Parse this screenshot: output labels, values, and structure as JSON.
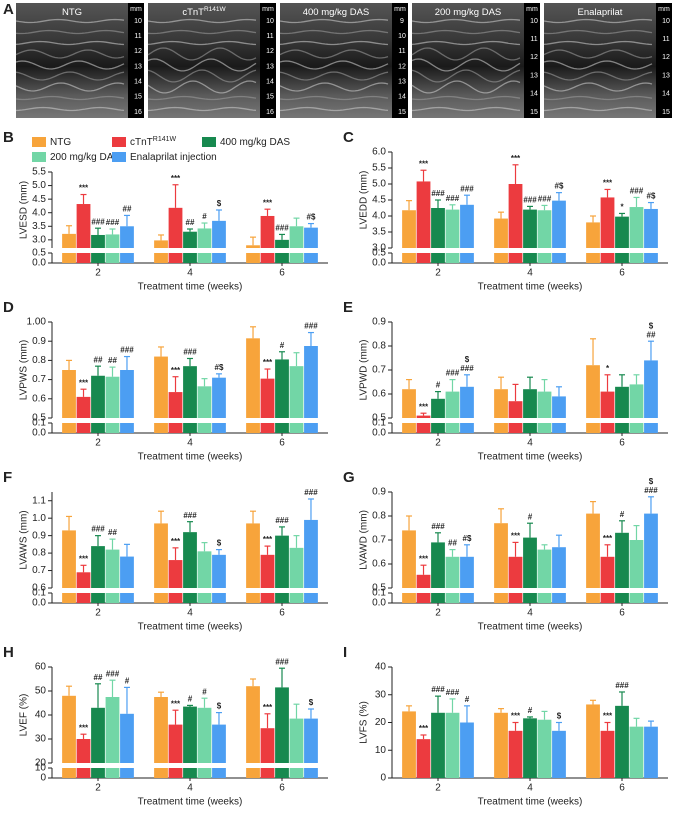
{
  "panel_a": {
    "label": "A",
    "images": [
      {
        "title": "NTG",
        "unit": "mm",
        "scale": [
          10,
          11,
          12,
          13,
          14,
          15,
          16
        ]
      },
      {
        "title": "cTnT",
        "title_sup": "R141W",
        "unit": "mm",
        "scale": [
          10,
          11,
          12,
          13,
          14,
          15,
          16
        ]
      },
      {
        "title": "400 mg/kg DAS",
        "unit": "mm",
        "scale": [
          9,
          10,
          11,
          12,
          13,
          14,
          15
        ]
      },
      {
        "title": "200 mg/kg DAS",
        "unit": "mm",
        "scale": [
          10,
          11,
          12,
          13,
          14,
          15
        ]
      },
      {
        "title": "Enalaprilat",
        "unit": "mm",
        "scale": [
          10,
          11,
          12,
          13,
          14,
          15
        ]
      }
    ]
  },
  "chart_data": [
    {
      "type": "bar",
      "panel": "B",
      "ylabel": "LVESD (mm)",
      "xlabel": "Treatment time (weeks)",
      "categories": [
        "2",
        "4",
        "6"
      ],
      "legend": true,
      "ylim": [
        2.7,
        5.5
      ],
      "yticks": [
        {
          "value": 3,
          "label": "3.0"
        },
        3.5,
        {
          "value": 4,
          "label": "4.0"
        },
        4.5,
        {
          "value": 5,
          "label": "5.0"
        },
        5.5
      ],
      "ylim_lower": [
        0,
        0.5
      ],
      "yticks_lower": [
        {
          "value": 0,
          "label": "0.0"
        },
        0.5
      ],
      "series": [
        {
          "name": "NTG",
          "color": "#f7a43b",
          "values": [
            3.22,
            2.98,
            2.8
          ],
          "errors": [
            0.3,
            0.2,
            0.3
          ]
        },
        {
          "name": "cTnT",
          "name_sup": "R141W",
          "color": "#ec3b3f",
          "values": [
            4.32,
            4.18,
            3.88
          ],
          "errors": [
            0.35,
            0.85,
            0.25
          ],
          "annotations": [
            "***",
            "***",
            "***"
          ]
        },
        {
          "name": "400 mg/kg DAS",
          "color": "#17894f",
          "values": [
            3.18,
            3.3,
            3.0
          ],
          "errors": [
            0.25,
            0.1,
            0.2
          ],
          "annotations": [
            "###",
            "##",
            "###"
          ]
        },
        {
          "name": "200 mg/kg DAS",
          "color": "#72d6a6",
          "values": [
            3.2,
            3.42,
            3.5
          ],
          "errors": [
            0.2,
            0.2,
            0.3
          ],
          "annotations": [
            "###",
            "#",
            null
          ]
        },
        {
          "name": "Enalaprilat injection",
          "color": "#4c9ef2",
          "values": [
            3.5,
            3.7,
            3.45
          ],
          "errors": [
            0.4,
            0.4,
            0.15
          ],
          "annotations": [
            "##",
            "$",
            "#$"
          ]
        }
      ]
    },
    {
      "type": "bar",
      "panel": "C",
      "ylabel": "LVEDD (mm)",
      "xlabel": "Treatment time (weeks)",
      "categories": [
        "2",
        "4",
        "6"
      ],
      "ylim": [
        3.0,
        6.0
      ],
      "yticks": [
        {
          "value": 3,
          "label": "3.0"
        },
        3.5,
        {
          "value": 4,
          "label": "4.0"
        },
        4.5,
        {
          "value": 5,
          "label": "5.0"
        },
        5.5,
        {
          "value": 6,
          "label": "6.0"
        }
      ],
      "ylim_lower": [
        0,
        0.5
      ],
      "yticks_lower": [
        {
          "value": 0,
          "label": "0.0"
        },
        0.5
      ],
      "series": [
        {
          "color": "#f7a43b",
          "values": [
            4.18,
            3.92,
            3.8
          ],
          "errors": [
            0.3,
            0.2,
            0.2
          ]
        },
        {
          "color": "#ec3b3f",
          "values": [
            5.08,
            5.0,
            4.58
          ],
          "errors": [
            0.35,
            0.6,
            0.25
          ],
          "annotations": [
            "***",
            "***",
            "***"
          ]
        },
        {
          "color": "#17894f",
          "values": [
            4.25,
            4.2,
            3.98
          ],
          "errors": [
            0.25,
            0.1,
            0.1
          ],
          "annotations": [
            "###",
            "###",
            "*"
          ]
        },
        {
          "color": "#72d6a6",
          "values": [
            4.2,
            4.18,
            4.28
          ],
          "errors": [
            0.15,
            0.15,
            0.3
          ],
          "annotations": [
            "###",
            "###",
            "###"
          ]
        },
        {
          "color": "#4c9ef2",
          "values": [
            4.35,
            4.48,
            4.22
          ],
          "errors": [
            0.3,
            0.25,
            0.2
          ],
          "annotations": [
            "###",
            "#$",
            "#$"
          ]
        }
      ]
    },
    {
      "type": "bar",
      "panel": "D",
      "ylabel": "LVPWS (mm)",
      "xlabel": "Treatment time (weeks)",
      "categories": [
        "2",
        "4",
        "6"
      ],
      "ylim": [
        0.5,
        1.0
      ],
      "yticks": [
        0.5,
        0.6,
        0.7,
        0.8,
        0.9,
        {
          "value": 1,
          "label": "1.00"
        }
      ],
      "ylim_lower": [
        0,
        0.1
      ],
      "yticks_lower": [
        {
          "value": 0,
          "label": "0.0"
        },
        0.1
      ],
      "series": [
        {
          "color": "#f7a43b",
          "values": [
            0.75,
            0.82,
            0.915
          ],
          "errors": [
            0.05,
            0.05,
            0.06
          ]
        },
        {
          "color": "#ec3b3f",
          "values": [
            0.61,
            0.635,
            0.705
          ],
          "errors": [
            0.04,
            0.08,
            0.05
          ],
          "annotations": [
            "***",
            "***",
            "***"
          ]
        },
        {
          "color": "#17894f",
          "values": [
            0.72,
            0.77,
            0.805
          ],
          "errors": [
            0.05,
            0.04,
            0.04
          ],
          "annotations": [
            "##",
            "###",
            "#"
          ]
        },
        {
          "color": "#72d6a6",
          "values": [
            0.715,
            0.665,
            0.77
          ],
          "errors": [
            0.05,
            0.04,
            0.07
          ],
          "annotations": [
            "##",
            null,
            null
          ]
        },
        {
          "color": "#4c9ef2",
          "values": [
            0.75,
            0.71,
            0.875
          ],
          "errors": [
            0.07,
            0.02,
            0.07
          ],
          "annotations": [
            "###",
            "#$",
            "###"
          ]
        }
      ]
    },
    {
      "type": "bar",
      "panel": "E",
      "ylabel": "LVPWD (mm)",
      "xlabel": "Treatment time (weeks)",
      "categories": [
        "2",
        "4",
        "6"
      ],
      "ylim": [
        0.5,
        0.9
      ],
      "yticks": [
        0.5,
        0.6,
        0.7,
        0.8,
        0.9
      ],
      "ylim_lower": [
        0,
        0.1
      ],
      "yticks_lower": [
        {
          "value": 0,
          "label": "0.0"
        },
        0.1
      ],
      "series": [
        {
          "color": "#f7a43b",
          "values": [
            0.62,
            0.62,
            0.72
          ],
          "errors": [
            0.04,
            0.05,
            0.11
          ]
        },
        {
          "color": "#ec3b3f",
          "values": [
            0.51,
            0.57,
            0.61
          ],
          "errors": [
            0.01,
            0.07,
            0.07
          ],
          "annotations": [
            "***",
            null,
            "*"
          ]
        },
        {
          "color": "#17894f",
          "values": [
            0.58,
            0.62,
            0.63
          ],
          "errors": [
            0.03,
            0.05,
            0.05
          ],
          "annotations": [
            "#",
            null,
            null
          ]
        },
        {
          "color": "#72d6a6",
          "values": [
            0.61,
            0.61,
            0.64
          ],
          "errors": [
            0.05,
            0.05,
            0.04
          ],
          "annotations": [
            "###",
            null,
            null
          ]
        },
        {
          "color": "#4c9ef2",
          "values": [
            0.63,
            0.59,
            0.74
          ],
          "errors": [
            0.05,
            0.04,
            0.08
          ],
          "annotations": [
            [
              "$",
              "###"
            ],
            null,
            [
              "$",
              "##"
            ]
          ]
        }
      ]
    },
    {
      "type": "bar",
      "panel": "F",
      "ylabel": "LVAWS (mm)",
      "xlabel": "Treatment time (weeks)",
      "categories": [
        "2",
        "4",
        "6"
      ],
      "ylim": [
        0.6,
        1.15
      ],
      "yticks": [
        0.6,
        0.7,
        0.8,
        0.9,
        {
          "value": 1,
          "label": "1.0"
        },
        1.1
      ],
      "ylim_lower": [
        0,
        0.1
      ],
      "yticks_lower": [
        {
          "value": 0,
          "label": "0.0"
        },
        0.1
      ],
      "series": [
        {
          "color": "#f7a43b",
          "values": [
            0.93,
            0.97,
            0.97
          ],
          "errors": [
            0.08,
            0.07,
            0.07
          ]
        },
        {
          "color": "#ec3b3f",
          "values": [
            0.69,
            0.76,
            0.79
          ],
          "errors": [
            0.04,
            0.07,
            0.05
          ],
          "annotations": [
            "***",
            "***",
            "***"
          ]
        },
        {
          "color": "#17894f",
          "values": [
            0.84,
            0.92,
            0.9
          ],
          "errors": [
            0.06,
            0.06,
            0.05
          ],
          "annotations": [
            "###",
            "###",
            "###"
          ]
        },
        {
          "color": "#72d6a6",
          "values": [
            0.82,
            0.81,
            0.83
          ],
          "errors": [
            0.06,
            0.05,
            0.07
          ],
          "annotations": [
            "##",
            null,
            null
          ]
        },
        {
          "color": "#4c9ef2",
          "values": [
            0.78,
            0.79,
            0.99
          ],
          "errors": [
            0.07,
            0.03,
            0.12
          ],
          "annotations": [
            null,
            "$",
            "###"
          ]
        }
      ]
    },
    {
      "type": "bar",
      "panel": "G",
      "ylabel": "LVAWD (mm)",
      "xlabel": "Treatment time (weeks)",
      "categories": [
        "2",
        "4",
        "6"
      ],
      "ylim": [
        0.5,
        0.9
      ],
      "yticks": [
        0.5,
        0.6,
        0.7,
        0.8,
        0.9
      ],
      "ylim_lower": [
        0,
        0.1
      ],
      "yticks_lower": [
        {
          "value": 0,
          "label": "0.0"
        },
        0.1
      ],
      "series": [
        {
          "color": "#f7a43b",
          "values": [
            0.74,
            0.77,
            0.81
          ],
          "errors": [
            0.06,
            0.06,
            0.05
          ]
        },
        {
          "color": "#ec3b3f",
          "values": [
            0.555,
            0.63,
            0.63
          ],
          "errors": [
            0.04,
            0.06,
            0.05
          ],
          "annotations": [
            "***",
            "***",
            "***"
          ]
        },
        {
          "color": "#17894f",
          "values": [
            0.69,
            0.71,
            0.73
          ],
          "errors": [
            0.04,
            0.06,
            0.05
          ],
          "annotations": [
            "###",
            "#",
            "#"
          ]
        },
        {
          "color": "#72d6a6",
          "values": [
            0.63,
            0.66,
            0.7
          ],
          "errors": [
            0.03,
            0.02,
            0.06
          ],
          "annotations": [
            "##",
            null,
            null
          ]
        },
        {
          "color": "#4c9ef2",
          "values": [
            0.63,
            0.67,
            0.81
          ],
          "errors": [
            0.05,
            0.05,
            0.07
          ],
          "annotations": [
            "#$",
            null,
            [
              "$",
              "###"
            ]
          ]
        }
      ]
    },
    {
      "type": "bar",
      "panel": "H",
      "ylabel": "LVEF (%)",
      "xlabel": "Treatment time (weeks)",
      "categories": [
        "2",
        "4",
        "6"
      ],
      "ylim": [
        20,
        60
      ],
      "yticks": [
        20,
        30,
        40,
        50,
        60
      ],
      "ylim_lower": [
        0,
        10
      ],
      "yticks_lower": [
        0,
        10
      ],
      "series": [
        {
          "color": "#f7a43b",
          "values": [
            48,
            47.5,
            52
          ],
          "errors": [
            4,
            2,
            3
          ]
        },
        {
          "color": "#ec3b3f",
          "values": [
            30,
            36,
            34.5
          ],
          "errors": [
            2,
            6,
            6
          ],
          "annotations": [
            "***",
            "***",
            "***"
          ]
        },
        {
          "color": "#17894f",
          "values": [
            43,
            43.5,
            51.5
          ],
          "errors": [
            10,
            0.5,
            8
          ],
          "annotations": [
            "##",
            "#",
            "###"
          ]
        },
        {
          "color": "#72d6a6",
          "values": [
            47.5,
            43,
            38.5
          ],
          "errors": [
            7,
            4,
            6
          ],
          "annotations": [
            "###",
            "#",
            null
          ]
        },
        {
          "color": "#4c9ef2",
          "values": [
            40.5,
            36,
            38.5
          ],
          "errors": [
            11,
            5,
            4
          ],
          "annotations": [
            "#",
            "$",
            "$"
          ]
        }
      ]
    },
    {
      "type": "bar",
      "panel": "I",
      "ylabel": "LVFS (%)",
      "xlabel": "Treatment time (weeks)",
      "categories": [
        "2",
        "4",
        "6"
      ],
      "ylim": [
        0,
        40
      ],
      "yticks": [
        0,
        10,
        20,
        30,
        40
      ],
      "series": [
        {
          "color": "#f7a43b",
          "values": [
            24,
            23.5,
            26.5
          ],
          "errors": [
            2,
            1.5,
            1.5
          ]
        },
        {
          "color": "#ec3b3f",
          "values": [
            14,
            17,
            17
          ],
          "errors": [
            1.5,
            3,
            3
          ],
          "annotations": [
            "***",
            "***",
            "***"
          ]
        },
        {
          "color": "#17894f",
          "values": [
            23.5,
            21.5,
            26
          ],
          "errors": [
            6,
            0.5,
            5
          ],
          "annotations": [
            "###",
            "#",
            "###"
          ]
        },
        {
          "color": "#72d6a6",
          "values": [
            23.5,
            21,
            18.5
          ],
          "errors": [
            5,
            3,
            3
          ],
          "annotations": [
            "###",
            null,
            null
          ]
        },
        {
          "color": "#4c9ef2",
          "values": [
            20,
            17,
            18.5
          ],
          "errors": [
            6,
            3,
            2
          ],
          "annotations": [
            "#",
            "$",
            null
          ]
        }
      ]
    }
  ]
}
